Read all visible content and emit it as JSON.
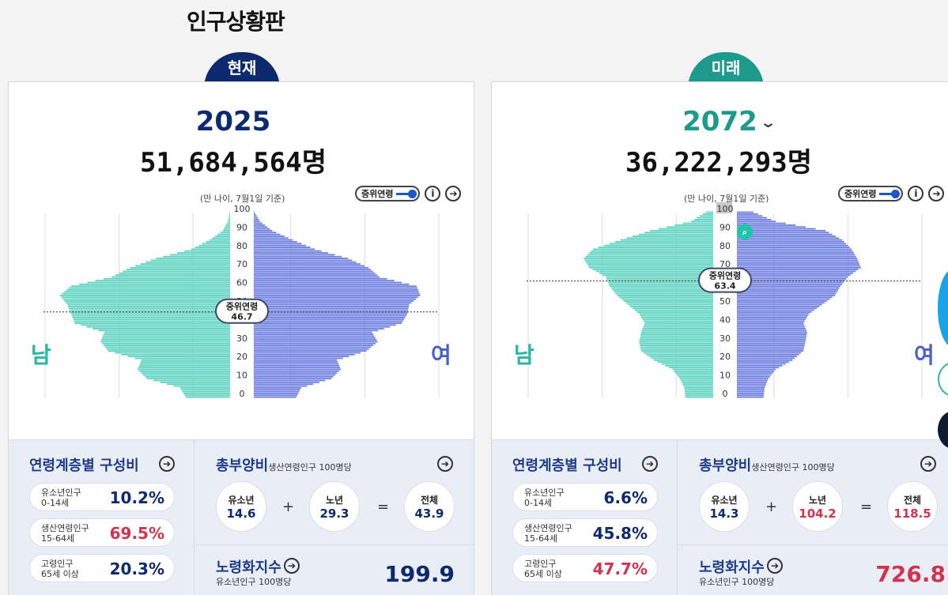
{
  "page_title": "인구상황판",
  "tabs": {
    "now": "현재",
    "future": "미래"
  },
  "sex_labels": {
    "male": "남",
    "female": "여"
  },
  "median_label": "중위연령",
  "basis": "(만 나이, 7월1일 기준)",
  "toggle_label": "중위연령",
  "icons": {
    "info": "info-icon",
    "arrow": "arrow-right-circle-icon",
    "zoom": "zoom-icon",
    "chevron": "chevron-down-icon"
  },
  "colors": {
    "navy": "#0e2a6e",
    "teal": "#1d9a8c",
    "male_bar": "#5fd3c1",
    "female_bar": "#6f7fe0",
    "red": "#d2334f"
  },
  "age_ticks": [
    "0",
    "10",
    "20",
    "30",
    "40",
    "50",
    "60",
    "70",
    "80",
    "90",
    "100"
  ],
  "pop_ticks_left": [
    "500,000",
    "300,000",
    "100,000",
    "0"
  ],
  "pop_ticks_right": [
    "0",
    "100,000",
    "300,000",
    "500,000"
  ],
  "stats_labels": {
    "age_structure": "연령계층별 구성비",
    "dependency": "총부양비",
    "dependency_sub": "생산연령인구 100명당",
    "aging": "노령화지수",
    "aging_sub": "유소년인구 100명당",
    "youth": "유소년인구",
    "youth_range": "0-14세",
    "working": "생산연령인구",
    "working_range": "15-64세",
    "elderly": "고령인구",
    "elderly_range": "65세 이상",
    "c_youth": "유소년",
    "c_old": "노년",
    "c_total": "전체",
    "plus": "+",
    "equals": "="
  },
  "now": {
    "year": "2025",
    "population": "51,684,564명",
    "median_age": "46.7",
    "youth_pct": "10.2%",
    "working_pct": "69.5%",
    "elderly_pct": "20.3%",
    "dep_youth": "14.6",
    "dep_old": "29.3",
    "dep_total": "43.9",
    "aging_index": "199.9"
  },
  "future": {
    "year": "2072",
    "population": "36,222,293명",
    "median_age": "63.4",
    "youth_pct": "6.6%",
    "working_pct": "45.8%",
    "elderly_pct": "47.7%",
    "dep_youth": "14.3",
    "dep_old": "104.2",
    "dep_total": "118.5",
    "aging_index": "726.8"
  },
  "chart_data": [
    {
      "type": "bar",
      "title": "2025",
      "x_unit": "population by single age",
      "xlim": [
        -500000,
        500000
      ],
      "ylim": [
        0,
        100
      ],
      "median_age": 46.7,
      "ages": [
        0,
        5,
        10,
        15,
        20,
        25,
        30,
        35,
        40,
        45,
        50,
        55,
        60,
        65,
        70,
        75,
        80,
        85,
        90,
        95,
        100
      ],
      "series": [
        {
          "name": "남",
          "values": [
            120000,
            135000,
            225000,
            250000,
            240000,
            330000,
            350000,
            340000,
            420000,
            430000,
            440000,
            460000,
            430000,
            320000,
            270000,
            200000,
            105000,
            55000,
            20000,
            6000,
            1000
          ]
        },
        {
          "name": "여",
          "values": [
            115000,
            128000,
            210000,
            235000,
            225000,
            305000,
            335000,
            320000,
            400000,
            415000,
            420000,
            450000,
            440000,
            340000,
            310000,
            255000,
            165000,
            105000,
            50000,
            17000,
            2000
          ]
        }
      ]
    },
    {
      "type": "bar",
      "title": "2072",
      "x_unit": "population by single age",
      "xlim": [
        -500000,
        500000
      ],
      "ylim": [
        0,
        100
      ],
      "median_age": 63.4,
      "ages": [
        0,
        5,
        10,
        15,
        20,
        25,
        30,
        35,
        40,
        45,
        50,
        55,
        60,
        65,
        70,
        75,
        80,
        85,
        90,
        95,
        100
      ],
      "series": [
        {
          "name": "남",
          "values": [
            75000,
            78000,
            90000,
            110000,
            160000,
            195000,
            200000,
            195000,
            185000,
            200000,
            230000,
            260000,
            280000,
            290000,
            335000,
            350000,
            325000,
            250000,
            170000,
            60000,
            20000
          ]
        },
        {
          "name": "여",
          "values": [
            72000,
            75000,
            85000,
            105000,
            150000,
            180000,
            185000,
            190000,
            180000,
            195000,
            230000,
            265000,
            280000,
            300000,
            335000,
            325000,
            310000,
            285000,
            240000,
            105000,
            45000
          ]
        }
      ]
    }
  ]
}
